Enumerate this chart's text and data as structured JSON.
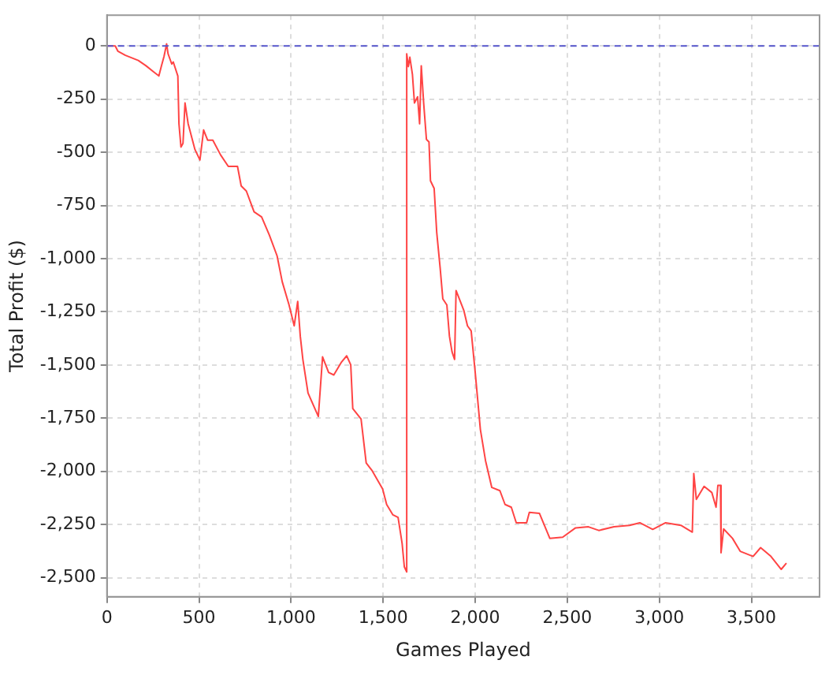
{
  "chart_data": {
    "type": "line",
    "xlabel": "Games Played",
    "ylabel": "Total Profit ($)",
    "x": [
      0,
      45,
      59,
      100,
      170,
      212,
      254,
      282,
      296,
      310,
      324,
      332,
      352,
      360,
      385,
      391,
      402,
      413,
      424,
      441,
      478,
      505,
      525,
      547,
      575,
      617,
      659,
      709,
      729,
      757,
      799,
      840,
      882,
      924,
      952,
      989,
      1017,
      1036,
      1050,
      1064,
      1092,
      1148,
      1171,
      1204,
      1232,
      1274,
      1302,
      1324,
      1335,
      1380,
      1408,
      1441,
      1497,
      1519,
      1553,
      1581,
      1603,
      1615,
      1628,
      1628,
      1637,
      1645,
      1659,
      1670,
      1687,
      1698,
      1707,
      1720,
      1735,
      1749,
      1757,
      1777,
      1791,
      1810,
      1824,
      1846,
      1860,
      1874,
      1888,
      1896,
      1916,
      1938,
      1958,
      1978,
      2000,
      2028,
      2056,
      2090,
      2134,
      2162,
      2196,
      2223,
      2279,
      2294,
      2349,
      2405,
      2475,
      2545,
      2615,
      2671,
      2754,
      2838,
      2894,
      2964,
      3034,
      3117,
      3179,
      3187,
      3201,
      3243,
      3285,
      3308,
      3318,
      3332,
      3335,
      3349,
      3397,
      3439,
      3509,
      3550,
      3606,
      3662,
      3690
    ],
    "series": [
      {
        "color": "#ff4444",
        "values": [
          0,
          0,
          -24,
          -44,
          -68,
          -93,
          -122,
          -141,
          -93,
          -49,
          10,
          -37,
          -85,
          -75,
          -141,
          -366,
          -475,
          -458,
          -268,
          -366,
          -487,
          -536,
          -395,
          -443,
          -443,
          -512,
          -566,
          -566,
          -658,
          -682,
          -780,
          -804,
          -889,
          -987,
          -1109,
          -1218,
          -1316,
          -1201,
          -1365,
          -1474,
          -1632,
          -1742,
          -1462,
          -1535,
          -1547,
          -1486,
          -1457,
          -1499,
          -1705,
          -1754,
          -1961,
          -1998,
          -2083,
          -2156,
          -2205,
          -2217,
          -2339,
          -2449,
          -2473,
          -37,
          -97,
          -53,
          -134,
          -268,
          -239,
          -366,
          -93,
          -268,
          -439,
          -451,
          -634,
          -670,
          -877,
          -1048,
          -1189,
          -1218,
          -1365,
          -1438,
          -1474,
          -1150,
          -1194,
          -1243,
          -1316,
          -1340,
          -1535,
          -1803,
          -1950,
          -2076,
          -2091,
          -2156,
          -2169,
          -2242,
          -2242,
          -2193,
          -2198,
          -2315,
          -2310,
          -2266,
          -2261,
          -2278,
          -2261,
          -2254,
          -2242,
          -2273,
          -2242,
          -2254,
          -2286,
          -2010,
          -2132,
          -2071,
          -2100,
          -2169,
          -2066,
          -2066,
          -2383,
          -2271,
          -2315,
          -2376,
          -2400,
          -2359,
          -2400,
          -2461,
          -2432
        ]
      }
    ],
    "xlim": [
      0,
      3870
    ],
    "ylim": [
      -2590,
      145
    ],
    "xticks": [
      0,
      500,
      {
        "value": 1000,
        "label": "1,000"
      },
      {
        "value": 1500,
        "label": "1,500"
      },
      {
        "value": 2000,
        "label": "2,000"
      },
      {
        "value": 2500,
        "label": "2,500"
      },
      {
        "value": 3000,
        "label": "3,000"
      },
      {
        "value": 3500,
        "label": "3,500"
      }
    ],
    "yticks": [
      0,
      -250,
      -500,
      -750,
      {
        "value": -1000,
        "label": "-1,000"
      },
      {
        "value": -1250,
        "label": "-1,250"
      },
      {
        "value": -1500,
        "label": "-1,500"
      },
      {
        "value": -1750,
        "label": "-1,750"
      },
      {
        "value": -2000,
        "label": "-2,000"
      },
      {
        "value": -2250,
        "label": "-2,250"
      },
      {
        "value": -2500,
        "label": "-2,500"
      }
    ],
    "ref_lines": [
      {
        "axis": "y",
        "value": 0,
        "color": "#5555cc",
        "line_style": "dashed"
      }
    ],
    "grid": true,
    "legend": false,
    "marker": "none",
    "line_style": "solid"
  }
}
